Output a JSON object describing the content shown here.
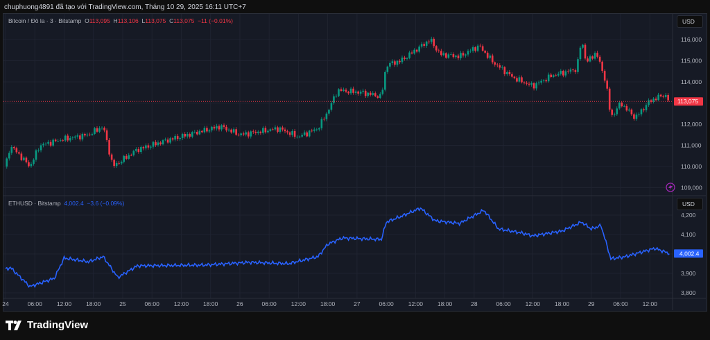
{
  "header": {
    "caption": "chuphuong4891 đã tạo với TradingView.com, Tháng 10 29, 2025 16:11 UTC+7"
  },
  "btc": {
    "symbol": "Bitcoin / Đô la · 3 · Bitstamp",
    "o_label": "O",
    "o": "113,095",
    "h_label": "H",
    "h": "113,106",
    "l_label": "L",
    "l": "113,075",
    "c_label": "C",
    "c": "113,075",
    "change": "−11 (−0.01%)",
    "currency": "USD",
    "last_price": "113,075",
    "last_value": 113075,
    "y_ticks": [
      "116,000",
      "115,000",
      "114,000",
      "112,000",
      "111,000",
      "110,000",
      "109,000"
    ],
    "up_color": "#089981",
    "down_color": "#f23645",
    "points": [
      [
        "10-24 00:00",
        110000
      ],
      [
        "10-24 01:00",
        111000
      ],
      [
        "10-24 05:00",
        110000
      ],
      [
        "10-24 07:00",
        111000
      ],
      [
        "10-24 12:00",
        111300
      ],
      [
        "10-24 17:00",
        111500
      ],
      [
        "10-24 20:00",
        111900
      ],
      [
        "10-24 22:00",
        110000
      ],
      [
        "10-25 03:00",
        110800
      ],
      [
        "10-25 10:00",
        111300
      ],
      [
        "10-25 20:00",
        111900
      ],
      [
        "10-26 00:00",
        111500
      ],
      [
        "10-26 08:00",
        111800
      ],
      [
        "10-26 12:00",
        111400
      ],
      [
        "10-26 16:00",
        111800
      ],
      [
        "10-26 18:00",
        112600
      ],
      [
        "10-26 20:00",
        113600
      ],
      [
        "10-27 01:00",
        113500
      ],
      [
        "10-27 05:00",
        113300
      ],
      [
        "10-27 06:00",
        114800
      ],
      [
        "10-27 09:00",
        115000
      ],
      [
        "10-27 15:00",
        116000
      ],
      [
        "10-27 17:00",
        115300
      ],
      [
        "10-27 21:00",
        115200
      ],
      [
        "10-28 01:00",
        115700
      ],
      [
        "10-28 04:00",
        114900
      ],
      [
        "10-28 08:00",
        114200
      ],
      [
        "10-28 12:00",
        113800
      ],
      [
        "10-28 16:00",
        114300
      ],
      [
        "10-28 21:00",
        114600
      ],
      [
        "10-28 22:00",
        116000
      ],
      [
        "10-28 23:00",
        114900
      ],
      [
        "10-29 01:00",
        115400
      ],
      [
        "10-29 03:00",
        114000
      ],
      [
        "10-29 04:00",
        112300
      ],
      [
        "10-29 06:00",
        113000
      ],
      [
        "10-29 09:00",
        112300
      ],
      [
        "10-29 12:00",
        113100
      ],
      [
        "10-29 15:00",
        113400
      ],
      [
        "10-29 16:00",
        113075
      ]
    ]
  },
  "eth": {
    "symbol": "ETHUSD · Bitstamp",
    "price": "4,002.4",
    "change": "−3.6 (−0.09%)",
    "currency": "USD",
    "last_price": "4,002.4",
    "line_color": "#2962ff",
    "y_ticks": [
      "4,200",
      "4,100",
      "3,900",
      "3,800"
    ],
    "points": [
      [
        "10-24 00:00",
        3921
      ],
      [
        "10-24 01:00",
        3930
      ],
      [
        "10-24 05:00",
        3832
      ],
      [
        "10-24 10:00",
        3875
      ],
      [
        "10-24 12:00",
        3979
      ],
      [
        "10-24 17:00",
        3960
      ],
      [
        "10-24 20:00",
        3986
      ],
      [
        "10-24 23:00",
        3879
      ],
      [
        "10-25 03:00",
        3939
      ],
      [
        "10-25 17:00",
        3943
      ],
      [
        "10-26 02:00",
        3957
      ],
      [
        "10-26 10:00",
        3950
      ],
      [
        "10-26 16:00",
        3986
      ],
      [
        "10-26 18:00",
        4050
      ],
      [
        "10-26 21:00",
        4082
      ],
      [
        "10-27 05:00",
        4075
      ],
      [
        "10-27 06:00",
        4164
      ],
      [
        "10-27 09:00",
        4193
      ],
      [
        "10-27 13:00",
        4236
      ],
      [
        "10-27 16:00",
        4171
      ],
      [
        "10-27 21:00",
        4157
      ],
      [
        "10-28 02:00",
        4225
      ],
      [
        "10-28 05:00",
        4129
      ],
      [
        "10-28 10:00",
        4107
      ],
      [
        "10-28 12:00",
        4093
      ],
      [
        "10-28 18:00",
        4118
      ],
      [
        "10-28 22:00",
        4164
      ],
      [
        "10-29 00:00",
        4129
      ],
      [
        "10-29 02:00",
        4146
      ],
      [
        "10-29 04:00",
        3975
      ],
      [
        "10-29 07:00",
        3986
      ],
      [
        "10-29 13:00",
        4029
      ],
      [
        "10-29 16:00",
        4002.4
      ]
    ]
  },
  "x_ticks": [
    "24",
    "06:00",
    "12:00",
    "18:00",
    "25",
    "06:00",
    "12:00",
    "18:00",
    "26",
    "06:00",
    "12:00",
    "18:00",
    "27",
    "06:00",
    "12:00",
    "18:00",
    "28",
    "06:00",
    "12:00",
    "18:00",
    "29",
    "06:00",
    "12:00"
  ],
  "footer": {
    "brand": "TradingView"
  }
}
